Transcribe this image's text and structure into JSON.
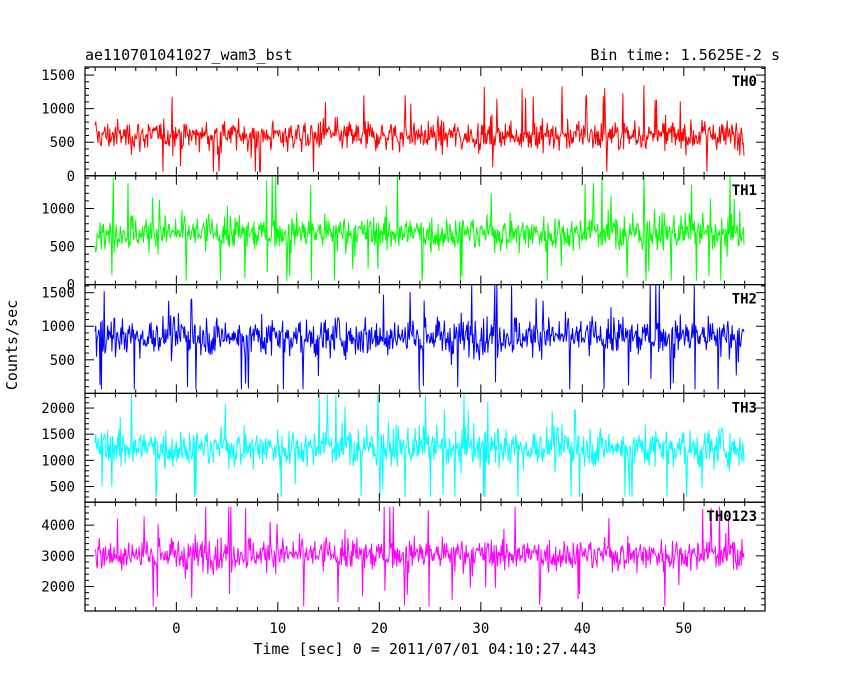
{
  "chart_data": {
    "type": "line",
    "title_left": "ae110701041027_wam3_bst",
    "title_right": "Bin time: 1.5625E-2 s",
    "xlabel": "Time [sec] 0 = 2011/07/01 04:10:27.443",
    "ylabel": "Counts/sec",
    "xlim": [
      -9,
      58
    ],
    "data_range": [
      -8,
      56
    ],
    "x_ticks": [
      0,
      10,
      20,
      30,
      40,
      50
    ],
    "grid": false,
    "panels": [
      {
        "name": "TH0",
        "color": "#ff0000",
        "ylim": [
          0,
          1620
        ],
        "y_ticks": [
          0,
          500,
          1000,
          1500
        ],
        "y_tick_labels": [
          "0",
          "500",
          "1000",
          "1500"
        ],
        "mean": 600,
        "spread": 260,
        "data_min": 60,
        "data_max": 1620
      },
      {
        "name": "TH1",
        "color": "#00ff00",
        "ylim": [
          0,
          1430
        ],
        "y_ticks": [
          0,
          500,
          1000
        ],
        "y_tick_labels": [
          "0",
          "500",
          "1000"
        ],
        "mean": 680,
        "spread": 270,
        "data_min": 50,
        "data_max": 1430
      },
      {
        "name": "TH2",
        "color": "#0000ff",
        "ylim": [
          0,
          1620
        ],
        "y_ticks": [
          500,
          1000,
          1500
        ],
        "y_tick_labels": [
          "500",
          "1000",
          "1500"
        ],
        "mean": 850,
        "spread": 330,
        "data_min": 60,
        "data_max": 1620
      },
      {
        "name": "TH3",
        "color": "#00ffff",
        "ylim": [
          200,
          2280
        ],
        "y_ticks": [
          500,
          1000,
          1500,
          2000
        ],
        "y_tick_labels": [
          "500",
          "1000",
          "1500",
          "2000"
        ],
        "mean": 1250,
        "spread": 430,
        "data_min": 300,
        "data_max": 2280
      },
      {
        "name": "TH0123",
        "color": "#ff00ff",
        "ylim": [
          1200,
          4750
        ],
        "y_ticks": [
          2000,
          3000,
          4000
        ],
        "y_tick_labels": [
          "2000",
          "3000",
          "4000"
        ],
        "mean": 3050,
        "spread": 620,
        "data_min": 1350,
        "data_max": 4600
      }
    ]
  }
}
